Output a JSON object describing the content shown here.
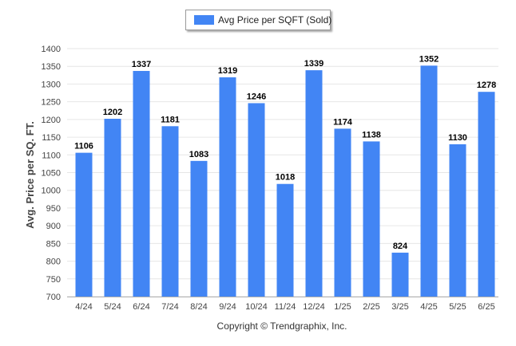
{
  "legend": {
    "label": "Avg Price per SQFT (Sold)"
  },
  "footer": {
    "copyright": "Copyright © Trendgraphix, Inc."
  },
  "chart_data": {
    "type": "bar",
    "ylabel": "Avg. Price per SQ. FT.",
    "xlabel": "",
    "ylim": [
      700,
      1400
    ],
    "ytick_step": 50,
    "grid": true,
    "legend_position": "top-center",
    "bar_color": "#4285f4",
    "categories": [
      "4/24",
      "5/24",
      "6/24",
      "7/24",
      "8/24",
      "9/24",
      "10/24",
      "11/24",
      "12/24",
      "1/25",
      "2/25",
      "3/25",
      "4/25",
      "5/25",
      "6/25"
    ],
    "series": [
      {
        "name": "Avg Price per SQFT (Sold)",
        "values": [
          1106,
          1202,
          1337,
          1181,
          1083,
          1319,
          1246,
          1018,
          1339,
          1174,
          1138,
          824,
          1352,
          1130,
          1278
        ]
      }
    ]
  }
}
